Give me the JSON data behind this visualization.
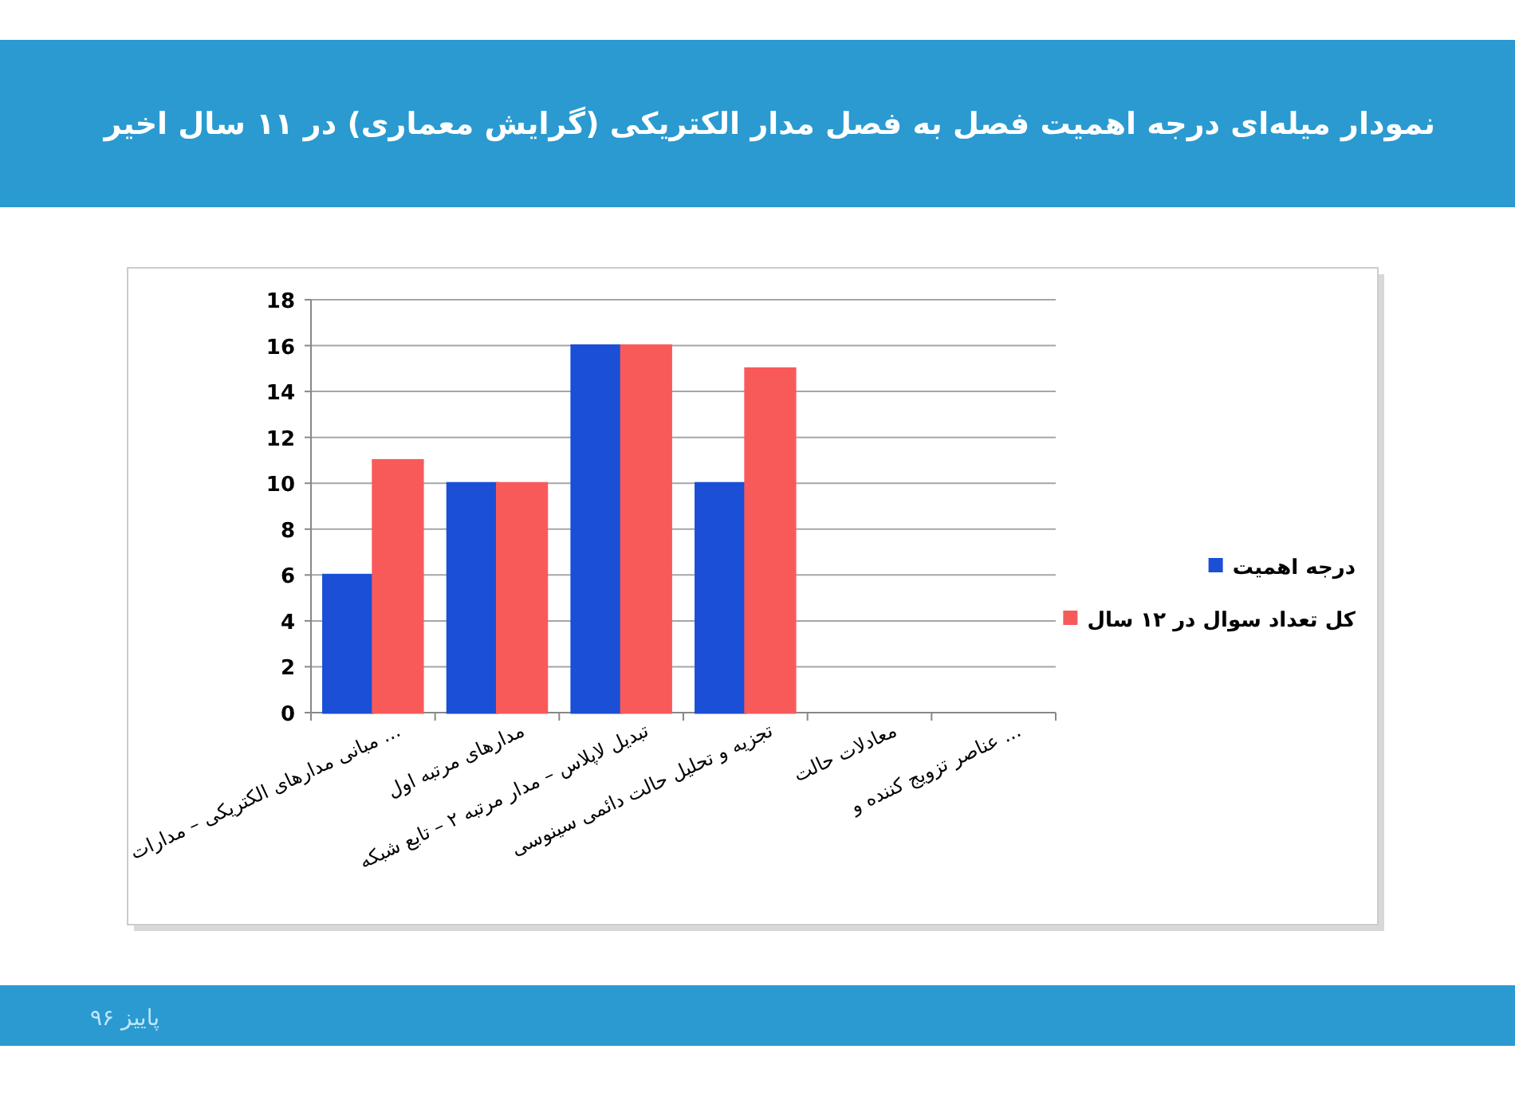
{
  "chart_data": {
    "type": "bar",
    "title": "نمودار میله‌ای درجه اهمیت فصل به فصل مدار الکتریکی (گرایش معماری) در ۱۱ سال اخیر",
    "categories": [
      "مبانی مدارهای الکتریکی – مدارات ...",
      "مدارهای مرتبه اول",
      "تبدیل لاپلاس – مدار مرتبه ۲ – تابع شبکه",
      "تجزیه و تحلیل حالت دائمی سینوسی",
      "معادلات حالت",
      "عناصر تزویج کننده و ..."
    ],
    "series": [
      {
        "name": "درجه اهمیت",
        "color": "#1a4fd6",
        "values": [
          6,
          10,
          16,
          10,
          0,
          0
        ]
      },
      {
        "name": "کل تعداد سوال در ۱۲ سال",
        "color": "#f85a5a",
        "values": [
          11,
          10,
          16,
          15,
          0,
          0
        ]
      }
    ],
    "ylim": [
      0,
      18
    ],
    "yticks": [
      0,
      2,
      4,
      6,
      8,
      10,
      12,
      14,
      16,
      18
    ],
    "grid": "y",
    "legend": "right",
    "annotations": [
      "پاییز ۹۶"
    ]
  }
}
